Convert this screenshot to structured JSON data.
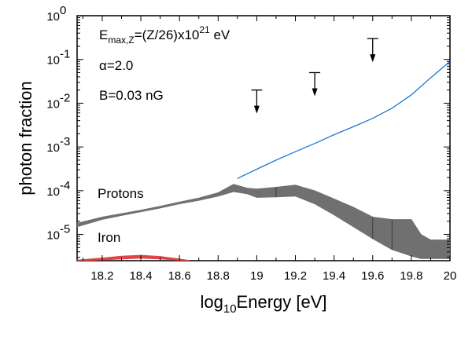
{
  "chart_data": {
    "type": "line",
    "xlabel_main": "log",
    "xlabel_sub": "10",
    "xlabel_rest": "Energy [eV]",
    "ylabel": "photon fraction",
    "xlim": [
      18.07,
      20.0
    ],
    "ylim_log10": [
      -5.6,
      0
    ],
    "y_scale": "log",
    "grid": false,
    "x_ticks": [
      {
        "value": 18.2,
        "label": "18.2"
      },
      {
        "value": 18.4,
        "label": "18.4"
      },
      {
        "value": 18.6,
        "label": "18.6"
      },
      {
        "value": 18.8,
        "label": "18.8"
      },
      {
        "value": 19.0,
        "label": "19"
      },
      {
        "value": 19.2,
        "label": "19.2"
      },
      {
        "value": 19.4,
        "label": "19.4"
      },
      {
        "value": 19.6,
        "label": "19.6"
      },
      {
        "value": 19.8,
        "label": "19.8"
      },
      {
        "value": 20.0,
        "label": "20"
      }
    ],
    "y_ticks": [
      {
        "exp": 0,
        "base": "10",
        "label": "0"
      },
      {
        "exp": -1,
        "base": "10",
        "label": "-1"
      },
      {
        "exp": -2,
        "base": "10",
        "label": "-2"
      },
      {
        "exp": -3,
        "base": "10",
        "label": "-3"
      },
      {
        "exp": -4,
        "base": "10",
        "label": "-4"
      },
      {
        "exp": -5,
        "base": "10",
        "label": "-5"
      }
    ],
    "annotations": {
      "line1_a": "E",
      "line1_sub": "max,Z",
      "line1_b": "=(Z/26)x10",
      "line1_sup": "21",
      "line1_c": " eV",
      "line2": "α=2.0",
      "line3": "B=0.03 nG",
      "protons_label": "Protons",
      "iron_label": "Iron"
    },
    "series": [
      {
        "kind": "line",
        "color": "#1f77d4",
        "x": [
          18.9,
          19.0,
          19.1,
          19.2,
          19.3,
          19.4,
          19.5,
          19.6,
          19.7,
          19.8,
          19.9,
          20.0
        ],
        "y": [
          0.00019,
          0.00031,
          0.0005,
          0.00078,
          0.0012,
          0.0019,
          0.0029,
          0.0045,
          0.0077,
          0.0155,
          0.038,
          0.09
        ]
      },
      {
        "kind": "band",
        "color": "#707070",
        "x": [
          18.07,
          18.2,
          18.3,
          18.4,
          18.5,
          18.6,
          18.7,
          18.8,
          18.88,
          18.95,
          19.0,
          19.1,
          19.2,
          19.3,
          19.4,
          19.5,
          19.6,
          19.7,
          19.8,
          19.85,
          19.9,
          20.0
        ],
        "low": [
          1.5e-05,
          2.2e-05,
          2.7e-05,
          3.3e-05,
          4e-05,
          5e-05,
          6e-05,
          7.5e-05,
          9.5e-05,
          8.5e-05,
          7e-05,
          7.2e-05,
          7.5e-05,
          5e-05,
          2.8e-05,
          1.5e-05,
          8e-06,
          4.5e-06,
          3.2e-06,
          2.8e-06,
          2.8e-06,
          2.8e-06
        ],
        "high": [
          1.8e-05,
          2.5e-05,
          3e-05,
          3.6e-05,
          4.4e-05,
          5.5e-05,
          6.8e-05,
          9e-05,
          0.00014,
          0.000115,
          0.00011,
          0.00012,
          0.000135,
          0.0001,
          6.5e-05,
          4.2e-05,
          2.5e-05,
          2.2e-05,
          2.2e-05,
          1e-05,
          7.5e-06,
          7.5e-06
        ],
        "dividers": [
          19.1,
          19.6,
          19.7
        ]
      },
      {
        "kind": "band",
        "color": "#e04444",
        "x": [
          18.07,
          18.2,
          18.3,
          18.4,
          18.5,
          18.6,
          18.65
        ],
        "low": [
          2.5e-06,
          2.6e-06,
          2.75e-06,
          2.85e-06,
          2.75e-06,
          2.55e-06,
          2.45e-06
        ],
        "high": [
          2.6e-06,
          2.9e-06,
          3.2e-06,
          3.35e-06,
          3.15e-06,
          2.75e-06,
          2.55e-06
        ]
      }
    ],
    "upper_limits": [
      {
        "x": 19.0,
        "y": 0.02
      },
      {
        "x": 19.3,
        "y": 0.05
      },
      {
        "x": 19.6,
        "y": 0.3
      }
    ]
  }
}
